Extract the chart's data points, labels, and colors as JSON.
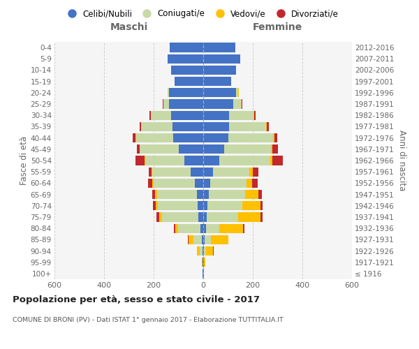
{
  "age_groups": [
    "100+",
    "95-99",
    "90-94",
    "85-89",
    "80-84",
    "75-79",
    "70-74",
    "65-69",
    "60-64",
    "55-59",
    "50-54",
    "45-49",
    "40-44",
    "35-39",
    "30-34",
    "25-29",
    "20-24",
    "15-19",
    "10-14",
    "5-9",
    "0-4"
  ],
  "birth_years": [
    "≤ 1916",
    "1917-1921",
    "1922-1926",
    "1927-1931",
    "1932-1936",
    "1937-1941",
    "1942-1946",
    "1947-1951",
    "1952-1956",
    "1957-1961",
    "1962-1966",
    "1967-1971",
    "1972-1976",
    "1977-1981",
    "1982-1986",
    "1987-1991",
    "1992-1996",
    "1997-2001",
    "2002-2006",
    "2007-2011",
    "2012-2016"
  ],
  "male_celibi": [
    2,
    2,
    3,
    5,
    12,
    20,
    22,
    25,
    35,
    50,
    75,
    100,
    120,
    125,
    130,
    138,
    138,
    115,
    130,
    145,
    135
  ],
  "male_coniugati": [
    0,
    2,
    12,
    35,
    90,
    145,
    160,
    160,
    165,
    155,
    160,
    155,
    150,
    125,
    80,
    22,
    5,
    1,
    0,
    0,
    0
  ],
  "male_vedovi": [
    0,
    2,
    10,
    20,
    12,
    12,
    10,
    8,
    5,
    3,
    2,
    2,
    2,
    1,
    1,
    1,
    0,
    0,
    0,
    0,
    0
  ],
  "male_divorziati": [
    0,
    0,
    1,
    2,
    5,
    12,
    10,
    12,
    18,
    12,
    35,
    12,
    12,
    6,
    5,
    2,
    1,
    0,
    0,
    0,
    0
  ],
  "female_nubili": [
    2,
    2,
    2,
    5,
    10,
    15,
    18,
    22,
    28,
    40,
    65,
    85,
    100,
    105,
    105,
    120,
    132,
    112,
    132,
    148,
    130
  ],
  "female_coniugate": [
    0,
    2,
    8,
    25,
    55,
    125,
    140,
    148,
    148,
    145,
    205,
    188,
    182,
    148,
    98,
    32,
    10,
    2,
    0,
    0,
    0
  ],
  "female_vedove": [
    2,
    5,
    30,
    70,
    95,
    92,
    72,
    52,
    22,
    15,
    10,
    5,
    5,
    3,
    2,
    2,
    1,
    0,
    0,
    0,
    0
  ],
  "female_divorziate": [
    0,
    0,
    2,
    2,
    5,
    8,
    10,
    15,
    22,
    22,
    42,
    22,
    12,
    8,
    5,
    3,
    1,
    0,
    0,
    0,
    0
  ],
  "colors_celibi": "#4472c4",
  "colors_coniugati": "#c8d9a8",
  "colors_vedovi": "#ffc000",
  "colors_divorziati": "#c0282d",
  "xlim": 600,
  "title": "Popolazione per età, sesso e stato civile - 2017",
  "subtitle": "COMUNE DI BRONI (PV) - Dati ISTAT 1° gennaio 2017 - Elaborazione TUTTITALIA.IT",
  "ylabel_left": "Fasce di età",
  "ylabel_right": "Anni di nascita",
  "label_maschi": "Maschi",
  "label_femmine": "Femmine",
  "bg_color": "#f5f5f5",
  "grid_color": "#cccccc",
  "legend_labels": [
    "Celibi/Nubili",
    "Coniugati/e",
    "Vedovi/e",
    "Divorziati/e"
  ]
}
